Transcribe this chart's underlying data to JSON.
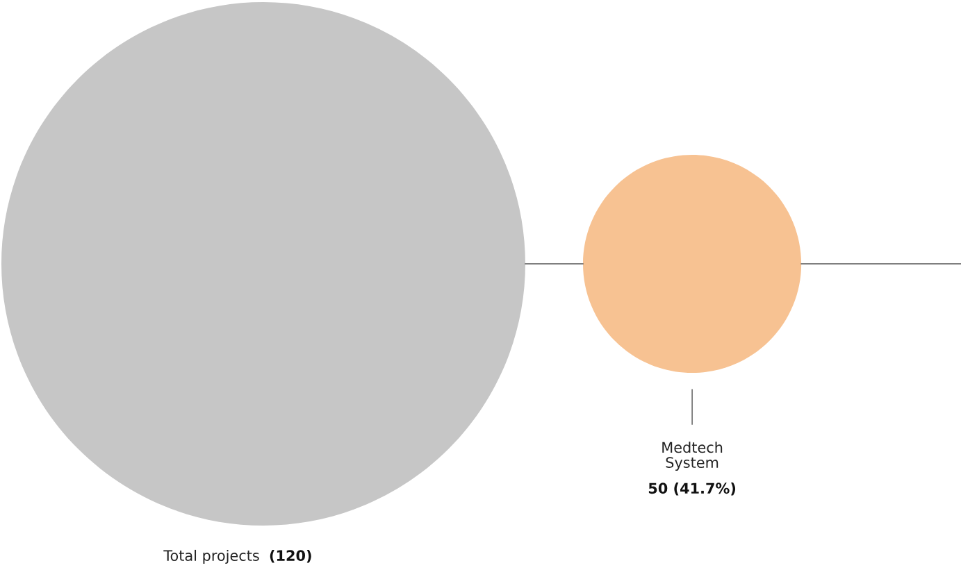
{
  "chart_data": {
    "type": "other",
    "categories": [
      "Total projects",
      "Medtech System"
    ],
    "values": [
      120,
      50
    ],
    "value_labels": [
      "(120)",
      "50 (41.7%)"
    ],
    "colors": [
      "#c6c6c6",
      "#f7c292"
    ]
  }
}
